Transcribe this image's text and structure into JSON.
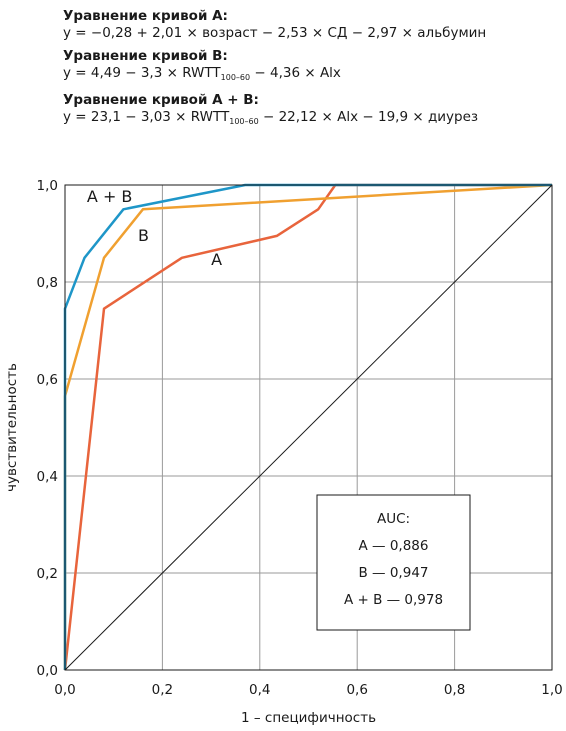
{
  "equations": [
    {
      "title": "Уравнение кривой А:",
      "parts": [
        "y = −0,28 + 2,01 × возраст − 2,53 × СД − 2,97 × альбумин"
      ]
    },
    {
      "title": "Уравнение кривой В:",
      "parts": [
        "y = 4,49 − 3,3 × RWTT",
        "100–60",
        " − 4,36 × Alx"
      ]
    },
    {
      "title": "Уравнение кривой А + В:",
      "parts": [
        "y = 23,1 − 3,03 × RWTT",
        "100–60",
        " − 22,12 × Alx − 19,9 × диурез"
      ]
    }
  ],
  "chart_data": {
    "type": "line",
    "xlabel": "1 – специфичность",
    "ylabel": "чувствительность",
    "xlim": [
      0,
      1
    ],
    "ylim": [
      0,
      1
    ],
    "xticks": [
      "0,0",
      "0,2",
      "0,4",
      "0,6",
      "0,8",
      "1,0"
    ],
    "yticks": [
      "0,0",
      "0,2",
      "0,4",
      "0,6",
      "0,8",
      "1,0"
    ],
    "grid": true,
    "series": [
      {
        "name": "А",
        "color": "#e8643c",
        "points": [
          [
            0,
            0
          ],
          [
            0.08,
            0.745
          ],
          [
            0.24,
            0.85
          ],
          [
            0.435,
            0.895
          ],
          [
            0.52,
            0.95
          ],
          [
            0.555,
            1.0
          ],
          [
            1.0,
            1.0
          ]
        ]
      },
      {
        "name": "В",
        "color": "#f0a030",
        "points": [
          [
            0,
            0
          ],
          [
            0,
            0.565
          ],
          [
            0.08,
            0.85
          ],
          [
            0.16,
            0.95
          ],
          [
            1.0,
            1.0
          ]
        ]
      },
      {
        "name": "А + В",
        "color": "#1e96c8",
        "points": [
          [
            0,
            0
          ],
          [
            0,
            0.745
          ],
          [
            0.04,
            0.85
          ],
          [
            0.12,
            0.95
          ],
          [
            0.37,
            1.0
          ],
          [
            1.0,
            1.0
          ]
        ]
      },
      {
        "name": "",
        "color": "#1a1a1a",
        "points": [
          [
            0,
            0
          ],
          [
            1,
            1
          ]
        ]
      }
    ],
    "curve_labels": [
      {
        "text": "А + В",
        "x": 0.045,
        "y": 0.965
      },
      {
        "text": "В",
        "x": 0.15,
        "y": 0.885
      },
      {
        "text": "А",
        "x": 0.3,
        "y": 0.835
      }
    ],
    "auc_box": {
      "title": "AUC:",
      "lines": [
        "А — 0,886",
        "В — 0,947",
        "А + В — 0,978"
      ]
    }
  }
}
